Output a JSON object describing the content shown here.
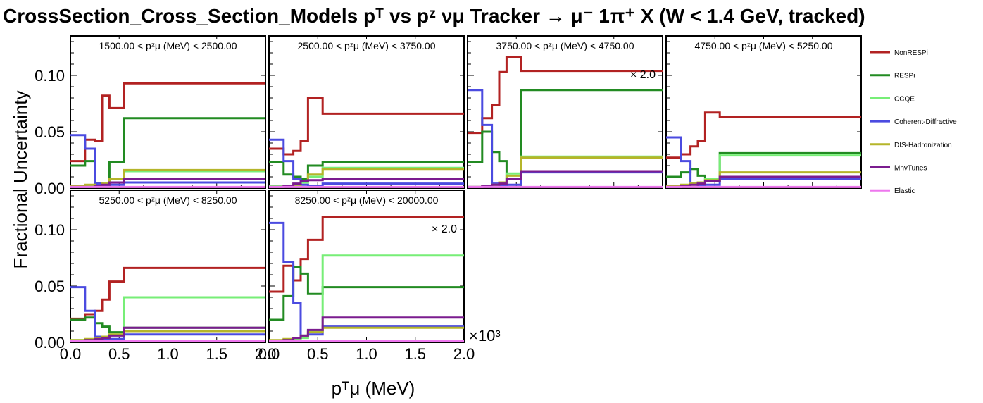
{
  "title": "CrossSection_Cross_Section_Models pᵀ vs pᶻ νμ Tracker → μ⁻ 1π⁺ X  (W < 1.4 GeV, tracked)",
  "colors": {
    "NonRESPi": "#b22222",
    "RESPi": "#228b22",
    "CCQE": "#77ee77",
    "Coherent-Diffractive": "#4b4be0",
    "DIS-Hadronization": "#b5b52a",
    "MnvTunes": "#7b1c8f",
    "Elastic": "#ee77ee"
  },
  "chart_data": {
    "type": "line",
    "style": "step",
    "xlabel": "pᵀμ (MeV)",
    "ylabel": "Fractional Uncertainty",
    "x_exponent": "×10³",
    "xlim": [
      0,
      2000
    ],
    "ylim": [
      0,
      0.135
    ],
    "x_ticks": [
      "0.0",
      "0.5",
      "1.0",
      "1.5",
      "2.0"
    ],
    "y_ticks": [
      "0.00",
      "0.05",
      "0.10"
    ],
    "bin_edges": [
      0,
      150,
      250,
      325,
      400,
      550,
      650,
      2000
    ],
    "legend": [
      "NonRESPi",
      "RESPi",
      "CCQE",
      "Coherent-Diffractive",
      "DIS-Hadronization",
      "MnvTunes",
      "Elastic"
    ],
    "legend_position": "right",
    "panels": [
      {
        "label": "1500.00 < pᶻμ (MeV) < 2500.00",
        "scale": "",
        "series": [
          {
            "name": "NonRESPi",
            "values": [
              0.024,
              0.043,
              0.042,
              0.082,
              0.071,
              0.093,
              0.093
            ]
          },
          {
            "name": "RESPi",
            "values": [
              0.02,
              0.024,
              0.004,
              0.003,
              0.023,
              0.062,
              0.062
            ]
          },
          {
            "name": "CCQE",
            "values": [
              0.002,
              0.002,
              0.002,
              0.004,
              0.005,
              0.015,
              0.015
            ]
          },
          {
            "name": "Coherent-Diffractive",
            "values": [
              0.047,
              0.035,
              0.004,
              0.002,
              0.003,
              0.005,
              0.005
            ]
          },
          {
            "name": "DIS-Hadronization",
            "values": [
              0.002,
              0.003,
              0.002,
              0.004,
              0.008,
              0.016,
              0.016
            ]
          },
          {
            "name": "MnvTunes",
            "values": [
              0.001,
              0.001,
              0.002,
              0.003,
              0.005,
              0.008,
              0.008
            ]
          },
          {
            "name": "Elastic",
            "values": [
              0.001,
              0.001,
              0.001,
              0.001,
              0.001,
              0.001,
              0.001
            ]
          }
        ]
      },
      {
        "label": "2500.00 < pᶻμ (MeV) < 3750.00",
        "scale": "",
        "series": [
          {
            "name": "NonRESPi",
            "values": [
              0.035,
              0.03,
              0.033,
              0.042,
              0.08,
              0.066,
              0.066
            ]
          },
          {
            "name": "RESPi",
            "values": [
              0.023,
              0.012,
              0.01,
              0.008,
              0.02,
              0.023,
              0.023
            ]
          },
          {
            "name": "CCQE",
            "values": [
              0.002,
              0.002,
              0.002,
              0.005,
              0.01,
              0.018,
              0.018
            ]
          },
          {
            "name": "Coherent-Diffractive",
            "values": [
              0.043,
              0.024,
              0.008,
              0.003,
              0.002,
              0.004,
              0.004
            ]
          },
          {
            "name": "DIS-Hadronization",
            "values": [
              0.001,
              0.002,
              0.003,
              0.006,
              0.012,
              0.017,
              0.017
            ]
          },
          {
            "name": "MnvTunes",
            "values": [
              0.001,
              0.002,
              0.004,
              0.006,
              0.007,
              0.008,
              0.008
            ]
          },
          {
            "name": "Elastic",
            "values": [
              0.001,
              0.001,
              0.001,
              0.001,
              0.001,
              0.001,
              0.001
            ]
          }
        ]
      },
      {
        "label": "3750.00 < pᶻμ (MeV) < 4750.00",
        "scale": "× 2.0",
        "series": [
          {
            "name": "NonRESPi",
            "values": [
              0.049,
              0.062,
              0.074,
              0.103,
              0.116,
              0.104,
              0.104
            ]
          },
          {
            "name": "RESPi",
            "values": [
              0.023,
              0.05,
              0.032,
              0.024,
              0.001,
              0.087,
              0.087
            ]
          },
          {
            "name": "CCQE",
            "values": [
              0.001,
              0.002,
              0.002,
              0.004,
              0.013,
              0.028,
              0.028
            ]
          },
          {
            "name": "Coherent-Diffractive",
            "values": [
              0.087,
              0.056,
              0.004,
              0.002,
              0.003,
              0.014,
              0.014
            ]
          },
          {
            "name": "DIS-Hadronization",
            "values": [
              0.001,
              0.002,
              0.003,
              0.005,
              0.011,
              0.027,
              0.027
            ]
          },
          {
            "name": "MnvTunes",
            "values": [
              0.001,
              0.002,
              0.003,
              0.004,
              0.008,
              0.015,
              0.015
            ]
          },
          {
            "name": "Elastic",
            "values": [
              0.001,
              0.001,
              0.001,
              0.001,
              0.001,
              0.001,
              0.001
            ]
          }
        ]
      },
      {
        "label": "4750.00 < pᶻμ (MeV) < 5250.00",
        "scale": "",
        "series": [
          {
            "name": "NonRESPi",
            "values": [
              0.027,
              0.03,
              0.037,
              0.042,
              0.067,
              0.063,
              0.063
            ]
          },
          {
            "name": "RESPi",
            "values": [
              0.01,
              0.014,
              0.017,
              0.011,
              0.006,
              0.031,
              0.031
            ]
          },
          {
            "name": "CCQE",
            "values": [
              0.001,
              0.002,
              0.003,
              0.004,
              0.008,
              0.029,
              0.029
            ]
          },
          {
            "name": "Coherent-Diffractive",
            "values": [
              0.045,
              0.024,
              0.004,
              0.002,
              0.003,
              0.008,
              0.008
            ]
          },
          {
            "name": "DIS-Hadronization",
            "values": [
              0.002,
              0.003,
              0.004,
              0.005,
              0.007,
              0.014,
              0.014
            ]
          },
          {
            "name": "MnvTunes",
            "values": [
              0.001,
              0.002,
              0.003,
              0.004,
              0.006,
              0.01,
              0.01
            ]
          },
          {
            "name": "Elastic",
            "values": [
              0.001,
              0.001,
              0.001,
              0.001,
              0.001,
              0.001,
              0.001
            ]
          }
        ]
      },
      {
        "label": "5250.00 < pᶻμ (MeV) < 8250.00",
        "scale": "",
        "series": [
          {
            "name": "NonRESPi",
            "values": [
              0.021,
              0.025,
              0.028,
              0.038,
              0.054,
              0.066,
              0.066
            ]
          },
          {
            "name": "RESPi",
            "values": [
              0.02,
              0.022,
              0.017,
              0.014,
              0.009,
              0.013,
              0.013
            ]
          },
          {
            "name": "CCQE",
            "values": [
              0.002,
              0.002,
              0.003,
              0.004,
              0.007,
              0.04,
              0.04
            ]
          },
          {
            "name": "Coherent-Diffractive",
            "values": [
              0.049,
              0.028,
              0.005,
              0.003,
              0.003,
              0.007,
              0.007
            ]
          },
          {
            "name": "DIS-Hadronization",
            "values": [
              0.002,
              0.003,
              0.004,
              0.005,
              0.007,
              0.01,
              0.01
            ]
          },
          {
            "name": "MnvTunes",
            "values": [
              0.001,
              0.002,
              0.003,
              0.004,
              0.006,
              0.013,
              0.013
            ]
          },
          {
            "name": "Elastic",
            "values": [
              0.001,
              0.001,
              0.001,
              0.001,
              0.001,
              0.001,
              0.001
            ]
          }
        ]
      },
      {
        "label": "8250.00 < pᶻμ (MeV) < 20000.00",
        "scale": "× 2.0",
        "series": [
          {
            "name": "NonRESPi",
            "values": [
              0.045,
              0.068,
              0.055,
              0.074,
              0.091,
              0.111,
              0.111
            ]
          },
          {
            "name": "RESPi",
            "values": [
              0.02,
              0.041,
              0.067,
              0.061,
              0.043,
              0.049,
              0.049
            ]
          },
          {
            "name": "CCQE",
            "values": [
              0.001,
              0.002,
              0.003,
              0.004,
              0.01,
              0.077,
              0.077
            ]
          },
          {
            "name": "Coherent-Diffractive",
            "values": [
              0.106,
              0.071,
              0.035,
              0.006,
              0.007,
              0.014,
              0.014
            ]
          },
          {
            "name": "DIS-Hadronization",
            "values": [
              0.002,
              0.003,
              0.004,
              0.006,
              0.009,
              0.013,
              0.013
            ]
          },
          {
            "name": "MnvTunes",
            "values": [
              0.001,
              0.002,
              0.004,
              0.006,
              0.011,
              0.022,
              0.022
            ]
          },
          {
            "name": "Elastic",
            "values": [
              0.001,
              0.001,
              0.001,
              0.001,
              0.001,
              0.001,
              0.001
            ]
          }
        ]
      }
    ]
  }
}
